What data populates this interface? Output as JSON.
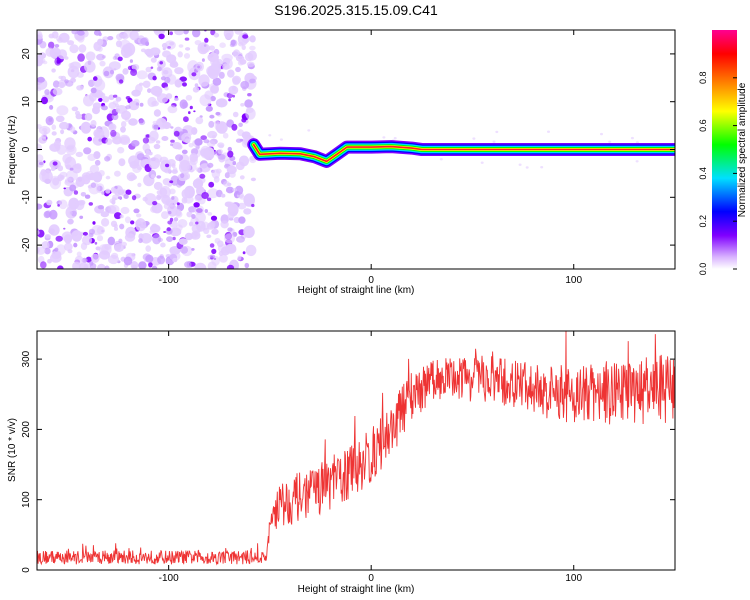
{
  "title": "S196.2025.315.15.09.C41",
  "chart_data": [
    {
      "type": "heatmap",
      "xlabel": "Height of straight line (km)",
      "ylabel": "Frequency (Hz)",
      "xlim": [
        -165,
        150
      ],
      "ylim": [
        -25,
        25
      ],
      "x_ticks": [
        -100,
        0,
        100
      ],
      "y_ticks": [
        -20,
        -10,
        0,
        10,
        20
      ],
      "noise_region_x": [
        -165,
        -58
      ],
      "signal_track": [
        {
          "x": -58,
          "y": 1.0
        },
        {
          "x": -55,
          "y": -1.0
        },
        {
          "x": -45,
          "y": -0.8
        },
        {
          "x": -35,
          "y": -0.9
        },
        {
          "x": -28,
          "y": -1.5
        },
        {
          "x": -22,
          "y": -2.5
        },
        {
          "x": -17,
          "y": -1.0
        },
        {
          "x": -12,
          "y": 0.5
        },
        {
          "x": 0,
          "y": 0.5
        },
        {
          "x": 10,
          "y": 0.6
        },
        {
          "x": 20,
          "y": 0.3
        },
        {
          "x": 25,
          "y": 0.0
        },
        {
          "x": 150,
          "y": 0.0
        }
      ],
      "colorbar": {
        "label": "Normalized spectral amplitude",
        "range": [
          0.0,
          1.0
        ],
        "ticks": [
          "0.0",
          "0.2",
          "0.4",
          "0.6",
          "0.8"
        ],
        "colormap": [
          "#ffffff",
          "#d9b3ff",
          "#8000ff",
          "#0000ff",
          "#00e0ff",
          "#00ff00",
          "#ffff00",
          "#ff8000",
          "#ff0000",
          "#ff0090"
        ]
      }
    },
    {
      "type": "line",
      "xlabel": "Height of straight line (km)",
      "ylabel": "SNR (10 * v/v)",
      "xlim": [
        -165,
        150
      ],
      "ylim": [
        0,
        340
      ],
      "x_ticks": [
        -100,
        0,
        100
      ],
      "y_ticks": [
        0,
        100,
        200,
        300
      ],
      "color": "#ee3333",
      "envelope": [
        {
          "x": -165,
          "mean": 18,
          "spread": 10
        },
        {
          "x": -52,
          "mean": 18,
          "spread": 10
        },
        {
          "x": -48,
          "mean": 90,
          "spread": 35
        },
        {
          "x": -30,
          "mean": 110,
          "spread": 35
        },
        {
          "x": -15,
          "mean": 130,
          "spread": 40
        },
        {
          "x": 0,
          "mean": 160,
          "spread": 40
        },
        {
          "x": 10,
          "mean": 200,
          "spread": 40
        },
        {
          "x": 20,
          "mean": 250,
          "spread": 35
        },
        {
          "x": 35,
          "mean": 275,
          "spread": 30
        },
        {
          "x": 60,
          "mean": 270,
          "spread": 35
        },
        {
          "x": 90,
          "mean": 250,
          "spread": 40
        },
        {
          "x": 120,
          "mean": 250,
          "spread": 45
        },
        {
          "x": 150,
          "mean": 260,
          "spread": 50
        }
      ]
    }
  ]
}
